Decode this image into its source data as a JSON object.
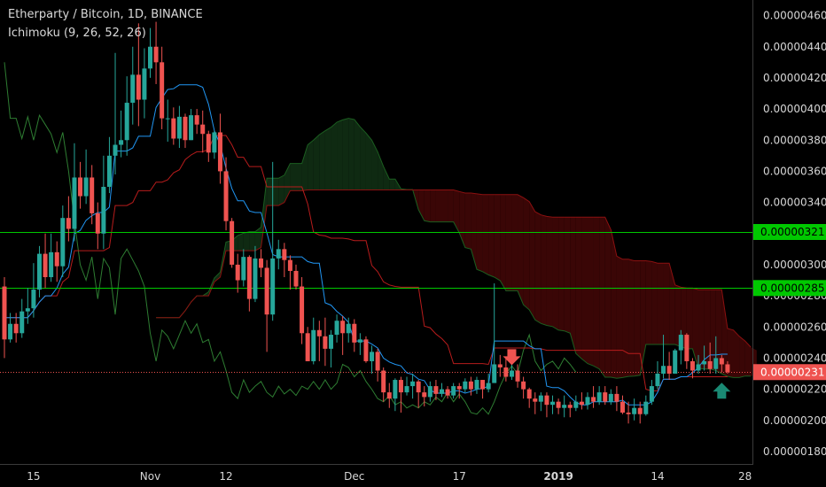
{
  "header": {
    "title": "Etherparty / Bitcoin, 1D, BINANCE",
    "indicator": "Ichimoku (9, 26, 52, 26)"
  },
  "colors": {
    "background": "#000000",
    "up": "#26a69a",
    "down": "#ef5350",
    "conversion_line": "#2196f3",
    "base_line": "#b71c1c",
    "lagging_span": "#2e7d32",
    "cloud_bull_fill": "#0f2a12",
    "cloud_bear_fill": "#3a0606",
    "horizontal_line": "#00c800",
    "last_price_line": "#ef5350",
    "arrow_down": "#ef5350",
    "arrow_up": "#1a8a74"
  },
  "chart_data": {
    "type": "candlestick",
    "x_tick_labels": [
      "15",
      "Nov",
      "12",
      "Dec",
      "17",
      "2019",
      "14",
      "28"
    ],
    "y_tick_labels": [
      "0.00000460",
      "0.00000440",
      "0.00000420",
      "0.00000400",
      "0.00000380",
      "0.00000360",
      "0.00000340",
      "0.00000320",
      "0.00000300",
      "0.00000280",
      "0.00000260",
      "0.00000240",
      "0.00000220",
      "0.00000200",
      "0.00000180"
    ],
    "y_range": [
      1.72e-06,
      4.7e-06
    ],
    "horizontal_lines": [
      {
        "value": 3.21e-06,
        "label": "0.00000321"
      },
      {
        "value": 2.85e-06,
        "label": "0.00000285"
      }
    ],
    "last_price": {
      "value": 2.31e-06,
      "label": "0.00000231"
    },
    "candles": [
      [
        2.86,
        2.52,
        2.92,
        2.4
      ],
      [
        2.52,
        2.62,
        2.69,
        2.5
      ],
      [
        2.62,
        2.56,
        2.69,
        2.5
      ],
      [
        2.56,
        2.7,
        2.78,
        2.53
      ],
      [
        2.7,
        2.72,
        2.85,
        2.62
      ],
      [
        2.72,
        2.84,
        3.01,
        2.66
      ],
      [
        2.84,
        3.07,
        3.12,
        2.79
      ],
      [
        3.07,
        2.92,
        3.2,
        2.85
      ],
      [
        2.92,
        3.08,
        3.2,
        2.89
      ],
      [
        3.08,
        2.99,
        3.15,
        2.89
      ],
      [
        2.99,
        3.3,
        3.38,
        2.92
      ],
      [
        3.3,
        3.23,
        3.44,
        3.15
      ],
      [
        3.23,
        3.56,
        3.78,
        3.15
      ],
      [
        3.56,
        3.44,
        3.66,
        3.36
      ],
      [
        3.44,
        3.56,
        3.74,
        3.39
      ],
      [
        3.56,
        3.33,
        3.64,
        3.26
      ],
      [
        3.33,
        3.2,
        3.4,
        3.1
      ],
      [
        3.2,
        3.5,
        3.7,
        3.1
      ],
      [
        3.5,
        3.7,
        3.82,
        3.46
      ],
      [
        3.7,
        3.77,
        4.36,
        3.58
      ],
      [
        3.77,
        3.8,
        3.99,
        3.69
      ],
      [
        3.8,
        4.04,
        4.21,
        3.7
      ],
      [
        4.04,
        4.22,
        4.4,
        3.9
      ],
      [
        4.22,
        4.06,
        4.55,
        3.89
      ],
      [
        4.06,
        4.26,
        4.39,
        3.94
      ],
      [
        4.26,
        4.4,
        4.52,
        4.2
      ],
      [
        4.4,
        4.3,
        4.56,
        4.16
      ],
      [
        4.3,
        3.94,
        4.4,
        3.87
      ],
      [
        3.94,
        3.94,
        4.06,
        3.79
      ],
      [
        3.94,
        3.81,
        4.01,
        3.77
      ],
      [
        3.81,
        3.95,
        4.02,
        3.75
      ],
      [
        3.95,
        3.8,
        3.97,
        3.75
      ],
      [
        3.8,
        3.96,
        4.0,
        3.8
      ],
      [
        3.96,
        3.9,
        4.0,
        3.84
      ],
      [
        3.9,
        3.84,
        3.99,
        3.72
      ],
      [
        3.84,
        3.72,
        3.86,
        3.66
      ],
      [
        3.72,
        3.85,
        3.86,
        3.68
      ],
      [
        3.85,
        3.6,
        3.97,
        3.52
      ],
      [
        3.6,
        3.28,
        3.69,
        3.22
      ],
      [
        3.28,
        3.0,
        3.3,
        2.98
      ],
      [
        3.0,
        2.9,
        3.07,
        2.82
      ],
      [
        2.9,
        3.05,
        3.1,
        2.86
      ],
      [
        3.05,
        2.78,
        3.06,
        2.7
      ],
      [
        2.78,
        3.04,
        3.12,
        2.76
      ],
      [
        3.04,
        2.98,
        3.1,
        2.92
      ],
      [
        2.98,
        2.68,
        3.03,
        2.44
      ],
      [
        2.68,
        3.04,
        3.66,
        2.64
      ],
      [
        3.04,
        3.1,
        3.16,
        2.97
      ],
      [
        3.1,
        3.03,
        3.14,
        2.92
      ],
      [
        3.03,
        2.96,
        3.06,
        2.84
      ],
      [
        2.96,
        2.86,
        3.0,
        2.84
      ],
      [
        2.86,
        2.56,
        2.92,
        2.49
      ],
      [
        2.56,
        2.38,
        2.6,
        2.38
      ],
      [
        2.38,
        2.58,
        2.66,
        2.36
      ],
      [
        2.58,
        2.54,
        2.64,
        2.38
      ],
      [
        2.54,
        2.46,
        2.66,
        2.35
      ],
      [
        2.46,
        2.55,
        2.58,
        2.34
      ],
      [
        2.55,
        2.64,
        2.68,
        2.5
      ],
      [
        2.64,
        2.56,
        2.67,
        2.42
      ],
      [
        2.56,
        2.62,
        2.66,
        2.5
      ],
      [
        2.62,
        2.5,
        2.65,
        2.44
      ],
      [
        2.5,
        2.52,
        2.56,
        2.42
      ],
      [
        2.52,
        2.38,
        2.54,
        2.37
      ],
      [
        2.38,
        2.44,
        2.48,
        2.3
      ],
      [
        2.44,
        2.32,
        2.46,
        2.25
      ],
      [
        2.32,
        2.18,
        2.34,
        2.12
      ],
      [
        2.18,
        2.14,
        2.24,
        2.08
      ],
      [
        2.14,
        2.26,
        2.27,
        2.06
      ],
      [
        2.26,
        2.18,
        2.28,
        2.05
      ],
      [
        2.18,
        2.22,
        2.28,
        2.16
      ],
      [
        2.22,
        2.25,
        2.3,
        2.14
      ],
      [
        2.25,
        2.18,
        2.26,
        2.08
      ],
      [
        2.18,
        2.15,
        2.22,
        2.09
      ],
      [
        2.15,
        2.22,
        2.25,
        2.12
      ],
      [
        2.22,
        2.17,
        2.26,
        2.13
      ],
      [
        2.17,
        2.2,
        2.24,
        2.15
      ],
      [
        2.2,
        2.16,
        2.22,
        2.14
      ],
      [
        2.16,
        2.22,
        2.24,
        2.14
      ],
      [
        2.22,
        2.2,
        2.24,
        2.14
      ],
      [
        2.2,
        2.25,
        2.27,
        2.18
      ],
      [
        2.25,
        2.2,
        2.28,
        2.16
      ],
      [
        2.2,
        2.26,
        2.28,
        2.17
      ],
      [
        2.26,
        2.2,
        2.26,
        2.14
      ],
      [
        2.2,
        2.24,
        2.3,
        2.18
      ],
      [
        2.24,
        2.36,
        2.88,
        2.24
      ],
      [
        2.36,
        2.34,
        2.42,
        2.28
      ],
      [
        2.34,
        2.28,
        2.4,
        2.25
      ],
      [
        2.28,
        2.32,
        2.4,
        2.26
      ],
      [
        2.32,
        2.25,
        2.36,
        2.21
      ],
      [
        2.25,
        2.2,
        2.28,
        2.14
      ],
      [
        2.2,
        2.14,
        2.21,
        2.08
      ],
      [
        2.14,
        2.12,
        2.18,
        2.04
      ],
      [
        2.12,
        2.16,
        2.18,
        2.06
      ],
      [
        2.16,
        2.1,
        2.18,
        2.02
      ],
      [
        2.1,
        2.12,
        2.16,
        2.04
      ],
      [
        2.12,
        2.08,
        2.14,
        2.04
      ],
      [
        2.08,
        2.1,
        2.16,
        2.02
      ],
      [
        2.1,
        2.08,
        2.12,
        2.02
      ],
      [
        2.08,
        2.12,
        2.16,
        2.06
      ],
      [
        2.12,
        2.1,
        2.18,
        2.07
      ],
      [
        2.1,
        2.15,
        2.18,
        2.07
      ],
      [
        2.15,
        2.12,
        2.22,
        2.08
      ],
      [
        2.12,
        2.18,
        2.22,
        2.1
      ],
      [
        2.18,
        2.12,
        2.22,
        2.1
      ],
      [
        2.12,
        2.17,
        2.2,
        2.1
      ],
      [
        2.17,
        2.12,
        2.22,
        2.06
      ],
      [
        2.12,
        2.05,
        2.16,
        2.04
      ],
      [
        2.05,
        2.04,
        2.12,
        1.98
      ],
      [
        2.04,
        2.08,
        2.14,
        2.0
      ],
      [
        2.08,
        2.04,
        2.12,
        1.98
      ],
      [
        2.04,
        2.12,
        2.16,
        2.03
      ],
      [
        2.12,
        2.22,
        2.26,
        2.1
      ],
      [
        2.22,
        2.3,
        2.38,
        2.2
      ],
      [
        2.3,
        2.35,
        2.55,
        2.27
      ],
      [
        2.35,
        2.3,
        2.44,
        2.26
      ],
      [
        2.3,
        2.45,
        2.46,
        2.3
      ],
      [
        2.45,
        2.55,
        2.58,
        2.36
      ],
      [
        2.55,
        2.38,
        2.56,
        2.33
      ],
      [
        2.38,
        2.32,
        2.4,
        2.27
      ],
      [
        2.32,
        2.36,
        2.42,
        2.3
      ],
      [
        2.36,
        2.38,
        2.48,
        2.32
      ],
      [
        2.38,
        2.33,
        2.5,
        2.3
      ],
      [
        2.33,
        2.4,
        2.54,
        2.3
      ],
      [
        2.4,
        2.36,
        2.42,
        2.31
      ],
      [
        2.36,
        2.31,
        2.38,
        2.3
      ]
    ],
    "annotations": [
      {
        "type": "arrow-down",
        "index": 87
      },
      {
        "type": "arrow-up",
        "index": 123
      }
    ]
  }
}
